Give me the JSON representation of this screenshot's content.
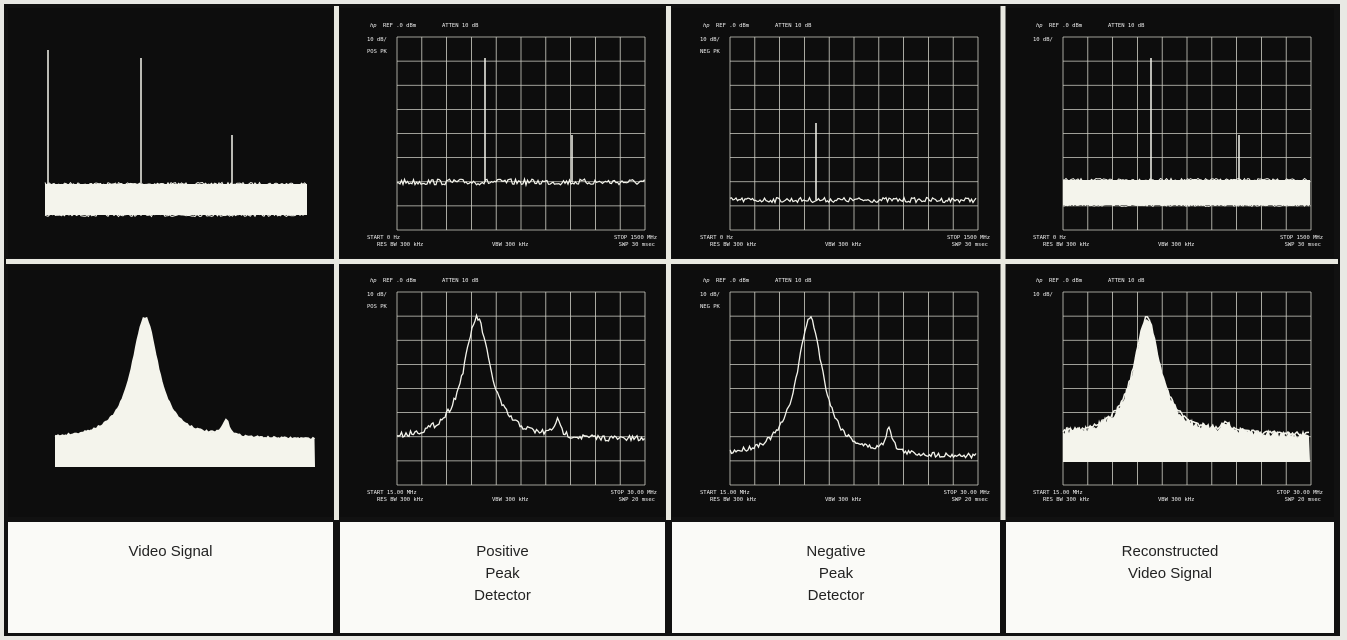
{
  "screens": [
    {
      "logo": "hp",
      "ref": "REF .0 dBm",
      "atten": "ATTEN 10 dB",
      "scale": "10 dB/",
      "detector": "POS PK",
      "start": "START 0 Hz",
      "stop": "STOP 1500 MHz",
      "res_bw": "RES BW 300 kHz",
      "vbw": "VBW 300 kHz",
      "sweep": "SWP 30 msec"
    },
    {
      "logo": "hp",
      "ref": "REF .0 dBm",
      "atten": "ATTEN 10 dB",
      "scale": "10 dB/",
      "detector": "NEG PK",
      "start": "START 0 Hz",
      "stop": "STOP 1500 MHz",
      "res_bw": "RES BW 300 kHz",
      "vbw": "VBW 300 kHz",
      "sweep": "SWP 30 msec"
    },
    {
      "logo": "hp",
      "ref": "REF .0 dBm",
      "atten": "ATTEN 10 dB",
      "scale": "10 dB/",
      "start": "START 0 Hz",
      "stop": "STOP 1500 MHz",
      "res_bw": "RES BW 300 kHz",
      "vbw": "VBW 300 kHz",
      "sweep": "SWP 30 msec"
    },
    {
      "logo": "hp",
      "ref": "REF .0 dBm",
      "atten": "ATTEN 10 dB",
      "scale": "10 dB/",
      "detector": "POS PK",
      "start": "START 15.00 MHz",
      "stop": "STOP 30.00 MHz",
      "res_bw": "RES BW 300 kHz",
      "vbw": "VBW 300 kHz",
      "sweep": "SWP 20 msec"
    },
    {
      "logo": "hp",
      "ref": "REF .0 dBm",
      "atten": "ATTEN 10 dB",
      "scale": "10 dB/",
      "detector": "NEG PK",
      "start": "START 15.00 MHz",
      "stop": "STOP 30.00 MHz",
      "res_bw": "RES BW 300 kHz",
      "vbw": "VBW 300 kHz",
      "sweep": "SWP 20 msec"
    },
    {
      "logo": "hp",
      "ref": "REF .0 dBm",
      "atten": "ATTEN 10 dB",
      "scale": "10 dB/",
      "start": "START 15.00 MHz",
      "stop": "STOP 30.00 MHz",
      "res_bw": "RES BW 300 kHz",
      "vbw": "VBW 300 kHz",
      "sweep": "SWP 20 msec"
    }
  ],
  "captions": [
    [
      "Video Signal"
    ],
    [
      "Positive",
      "Peak",
      "Detector"
    ],
    [
      "Negative",
      "Peak",
      "Detector"
    ],
    [
      "Reconstructed",
      "Video Signal"
    ]
  ]
}
